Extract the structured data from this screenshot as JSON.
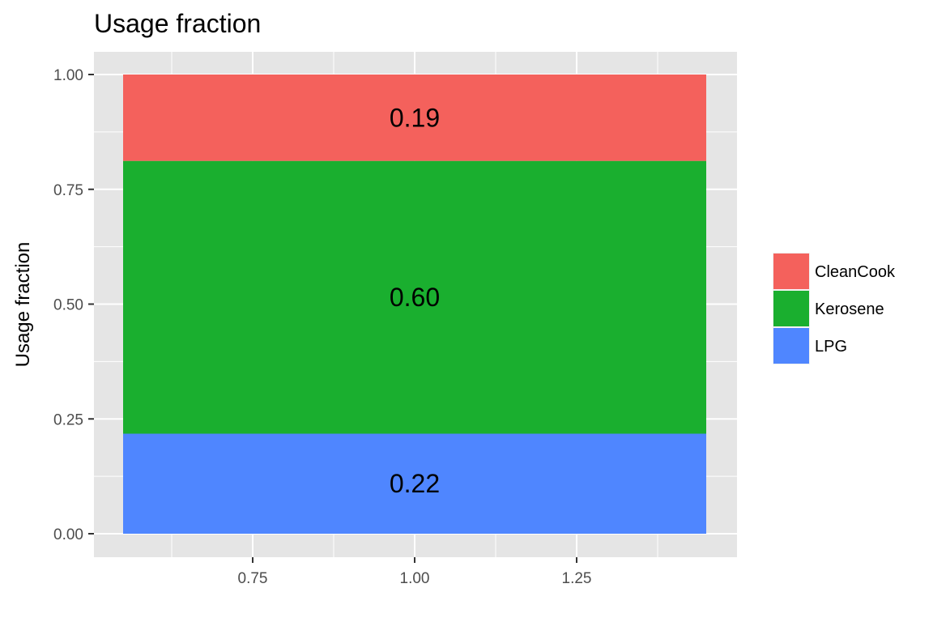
{
  "chart_data": {
    "type": "bar",
    "stacked": true,
    "position": "fill",
    "title": "Usage fraction",
    "xlabel": "",
    "ylabel": "Usage fraction",
    "x": [
      1.0
    ],
    "xlim": [
      0.5,
      1.5
    ],
    "ylim": [
      0,
      1.05
    ],
    "xticks": [
      "0.75",
      "1.00",
      "1.25"
    ],
    "yticks": [
      "0.00",
      "0.25",
      "0.50",
      "0.75",
      "1.00"
    ],
    "grid": true,
    "legend_position": "right",
    "series": [
      {
        "name": "LPG",
        "value": 0.22,
        "label": "0.22",
        "color": "#4f86ff"
      },
      {
        "name": "Kerosene",
        "value": 0.6,
        "label": "0.60",
        "color": "#1aaf2f"
      },
      {
        "name": "CleanCook",
        "value": 0.19,
        "label": "0.19",
        "color": "#f4615c"
      }
    ],
    "legend_order": [
      "CleanCook",
      "Kerosene",
      "LPG"
    ],
    "panel_background": "#e5e5e5",
    "grid_color": "#ffffff"
  }
}
